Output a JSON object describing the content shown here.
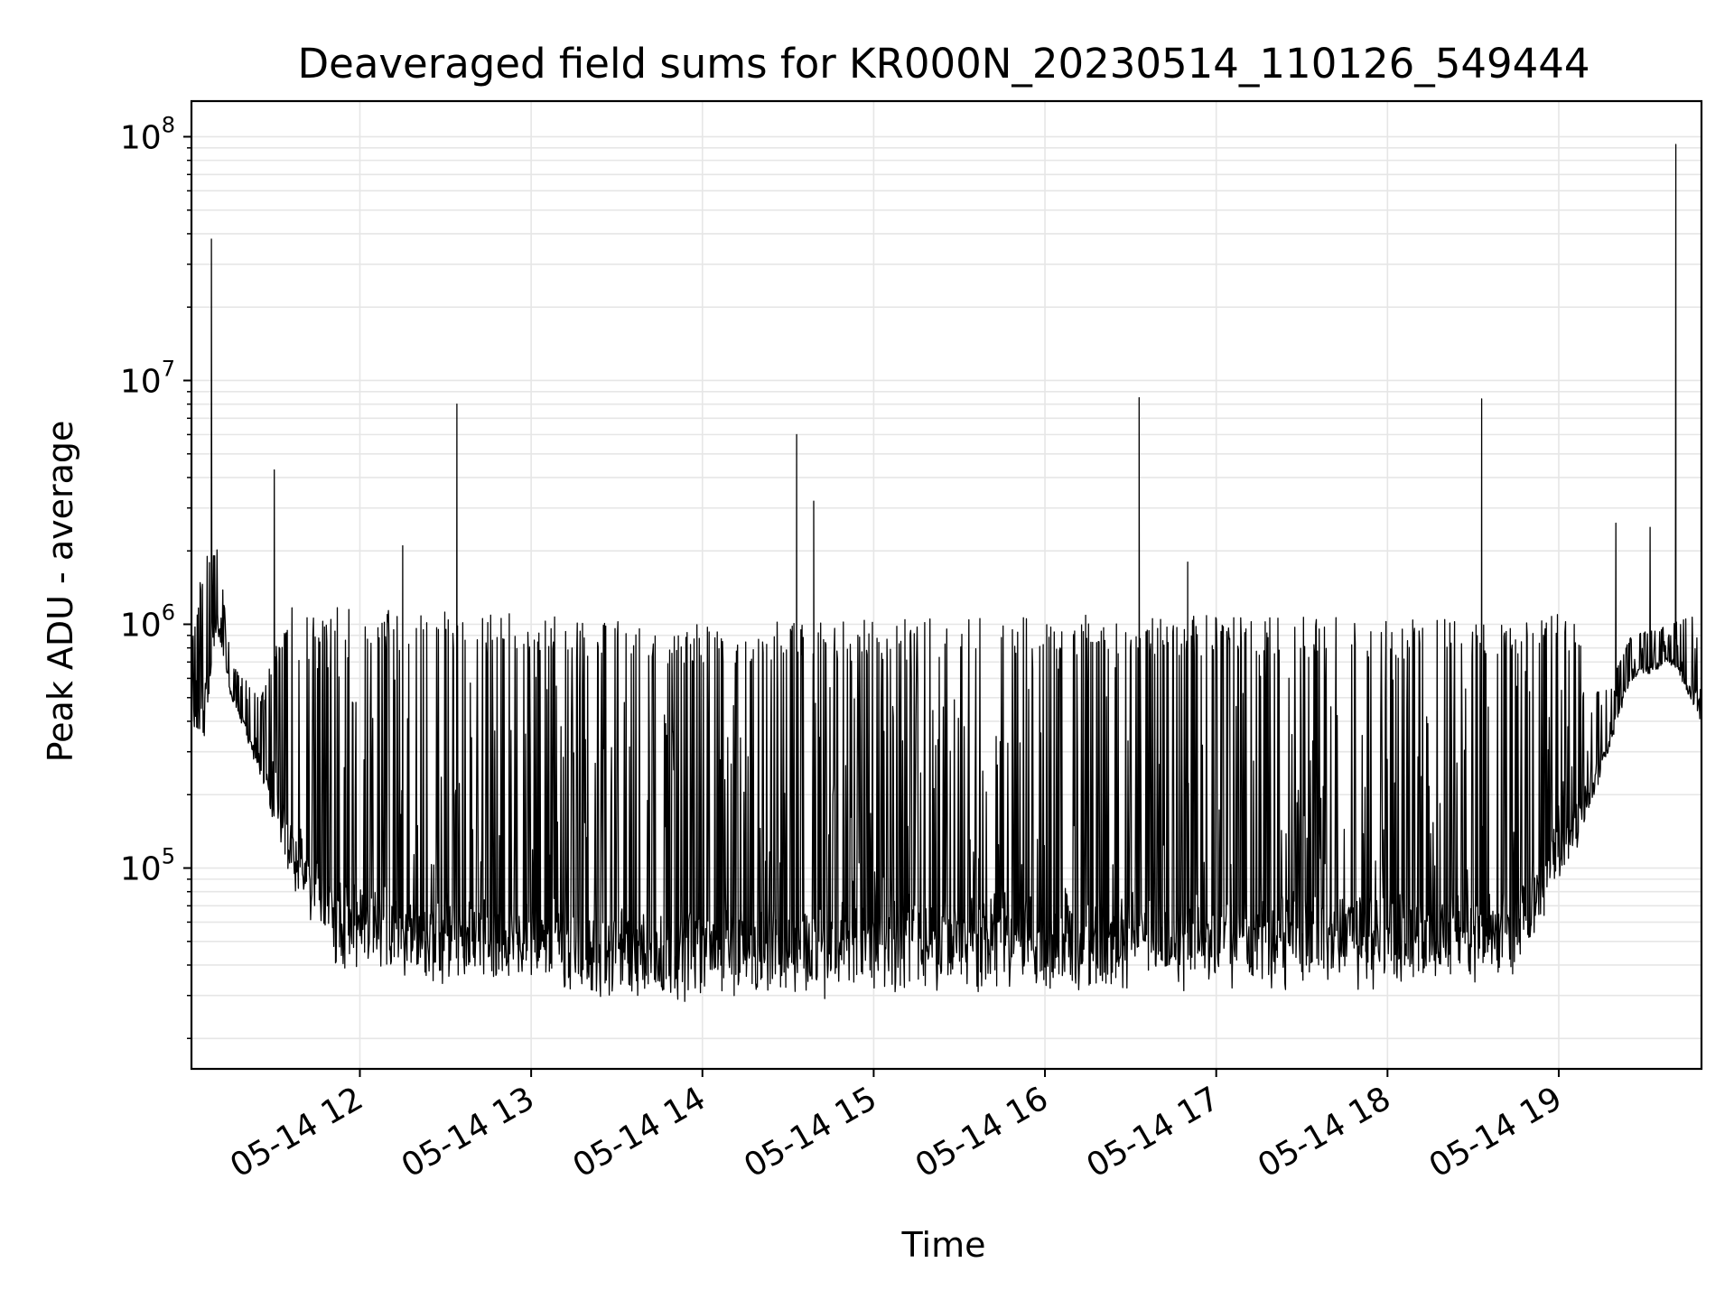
{
  "chart_data": {
    "type": "line",
    "title": "Deaveraged field sums for KR000N_20230514_110126_549444",
    "xlabel": "Time",
    "ylabel": "Peak ADU - average",
    "yscale": "log",
    "grid": true,
    "line_color": "#000000",
    "grid_color": "#e6e6e6",
    "xlim": [
      "2023-05-14 11:01",
      "2023-05-14 19:50"
    ],
    "ylim": [
      15000,
      140000000
    ],
    "x_ticks": [
      {
        "value": "2023-05-14 12:00",
        "label": "05-14 12"
      },
      {
        "value": "2023-05-14 13:00",
        "label": "05-14 13"
      },
      {
        "value": "2023-05-14 14:00",
        "label": "05-14 14"
      },
      {
        "value": "2023-05-14 15:00",
        "label": "05-14 15"
      },
      {
        "value": "2023-05-14 16:00",
        "label": "05-14 16"
      },
      {
        "value": "2023-05-14 17:00",
        "label": "05-14 17"
      },
      {
        "value": "2023-05-14 18:00",
        "label": "05-14 18"
      },
      {
        "value": "2023-05-14 19:00",
        "label": "05-14 19"
      }
    ],
    "y_ticks": [
      {
        "value": 100000,
        "base": "10",
        "exp": "5"
      },
      {
        "value": 1000000,
        "base": "10",
        "exp": "6"
      },
      {
        "value": 10000000,
        "base": "10",
        "exp": "7"
      },
      {
        "value": 100000000,
        "base": "10",
        "exp": "8"
      }
    ],
    "series": [
      {
        "envelope": [
          {
            "t": "2023-05-14 11:01",
            "low": 400000,
            "high": 800000
          },
          {
            "t": "2023-05-14 11:05",
            "low": 350000,
            "high": 1800000
          },
          {
            "t": "2023-05-14 11:10",
            "low": 1000000,
            "high": 2200000
          },
          {
            "t": "2023-05-14 11:15",
            "low": 500000,
            "high": 700000
          },
          {
            "t": "2023-05-14 11:25",
            "low": 250000,
            "high": 500000
          },
          {
            "t": "2023-05-14 11:35",
            "low": 110000,
            "high": 1200000
          },
          {
            "t": "2023-05-14 11:50",
            "low": 50000,
            "high": 1200000
          },
          {
            "t": "2023-05-14 12:10",
            "low": 42000,
            "high": 1150000
          },
          {
            "t": "2023-05-14 13:00",
            "low": 38000,
            "high": 1100000
          },
          {
            "t": "2023-05-14 13:30",
            "low": 33000,
            "high": 1050000
          },
          {
            "t": "2023-05-14 14:00",
            "low": 35000,
            "high": 1000000
          },
          {
            "t": "2023-05-14 15:00",
            "low": 38000,
            "high": 1050000
          },
          {
            "t": "2023-05-14 16:00",
            "low": 40000,
            "high": 1100000
          },
          {
            "t": "2023-05-14 17:00",
            "low": 40000,
            "high": 1100000
          },
          {
            "t": "2023-05-14 18:00",
            "low": 40000,
            "high": 1050000
          },
          {
            "t": "2023-05-14 18:45",
            "low": 45000,
            "high": 1100000
          },
          {
            "t": "2023-05-14 19:05",
            "low": 120000,
            "high": 1100000
          },
          {
            "t": "2023-05-14 19:15",
            "low": 250000,
            "high": 500000
          },
          {
            "t": "2023-05-14 19:25",
            "low": 600000,
            "high": 900000
          },
          {
            "t": "2023-05-14 19:40",
            "low": 700000,
            "high": 1000000
          },
          {
            "t": "2023-05-14 19:50",
            "low": 400000,
            "high": 1200000
          }
        ],
        "peaks": [
          {
            "t": "2023-05-14 11:08",
            "value": 38000000
          },
          {
            "t": "2023-05-14 11:30",
            "value": 4300000
          },
          {
            "t": "2023-05-14 12:15",
            "value": 2100000
          },
          {
            "t": "2023-05-14 12:34",
            "value": 8000000
          },
          {
            "t": "2023-05-14 14:33",
            "value": 6000000
          },
          {
            "t": "2023-05-14 14:39",
            "value": 3200000
          },
          {
            "t": "2023-05-14 16:33",
            "value": 8500000
          },
          {
            "t": "2023-05-14 16:50",
            "value": 1800000
          },
          {
            "t": "2023-05-14 18:33",
            "value": 8400000
          },
          {
            "t": "2023-05-14 19:20",
            "value": 2600000
          },
          {
            "t": "2023-05-14 19:32",
            "value": 2500000
          },
          {
            "t": "2023-05-14 19:41",
            "value": 93000000
          }
        ]
      }
    ]
  }
}
